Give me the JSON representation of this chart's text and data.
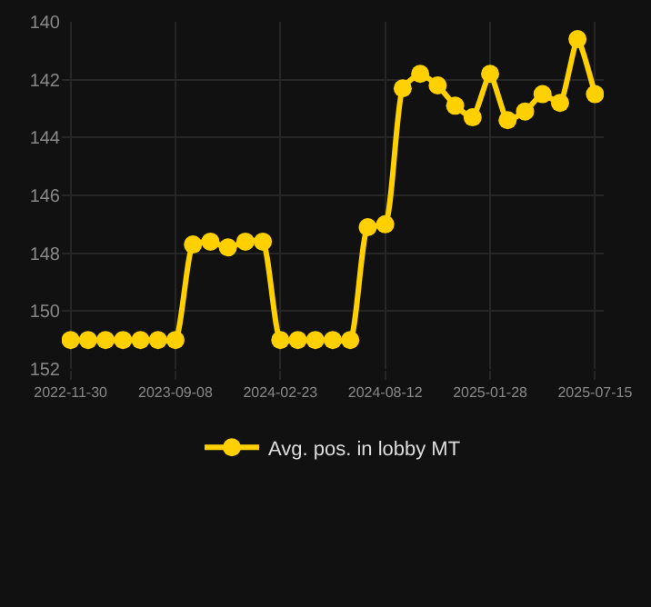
{
  "chart_data": {
    "type": "line",
    "categories": [
      "2022-11-30",
      null,
      null,
      null,
      null,
      null,
      "2023-09-08",
      null,
      null,
      null,
      null,
      null,
      "2024-02-23",
      null,
      null,
      null,
      null,
      null,
      "2024-08-12",
      null,
      null,
      null,
      null,
      null,
      "2025-01-28",
      null,
      null,
      null,
      null,
      null,
      "2025-07-15"
    ],
    "series": [
      {
        "name": "Avg. pos. in lobby MT",
        "color": "#ffd000",
        "values": [
          151.0,
          151.0,
          151.0,
          151.0,
          151.0,
          151.0,
          151.0,
          147.7,
          147.6,
          147.8,
          147.6,
          147.6,
          151.0,
          151.0,
          151.0,
          151.0,
          151.0,
          147.1,
          147.0,
          142.3,
          141.8,
          142.2,
          142.9,
          143.3,
          141.8,
          143.4,
          143.1,
          142.5,
          142.8,
          140.6,
          142.5
        ]
      }
    ],
    "ylim": [
      152,
      140
    ],
    "yticks": [
      140,
      142,
      144,
      146,
      148,
      150,
      152
    ],
    "grid": true,
    "legend": "bottom",
    "marker": "circle",
    "line_style": "solid"
  }
}
